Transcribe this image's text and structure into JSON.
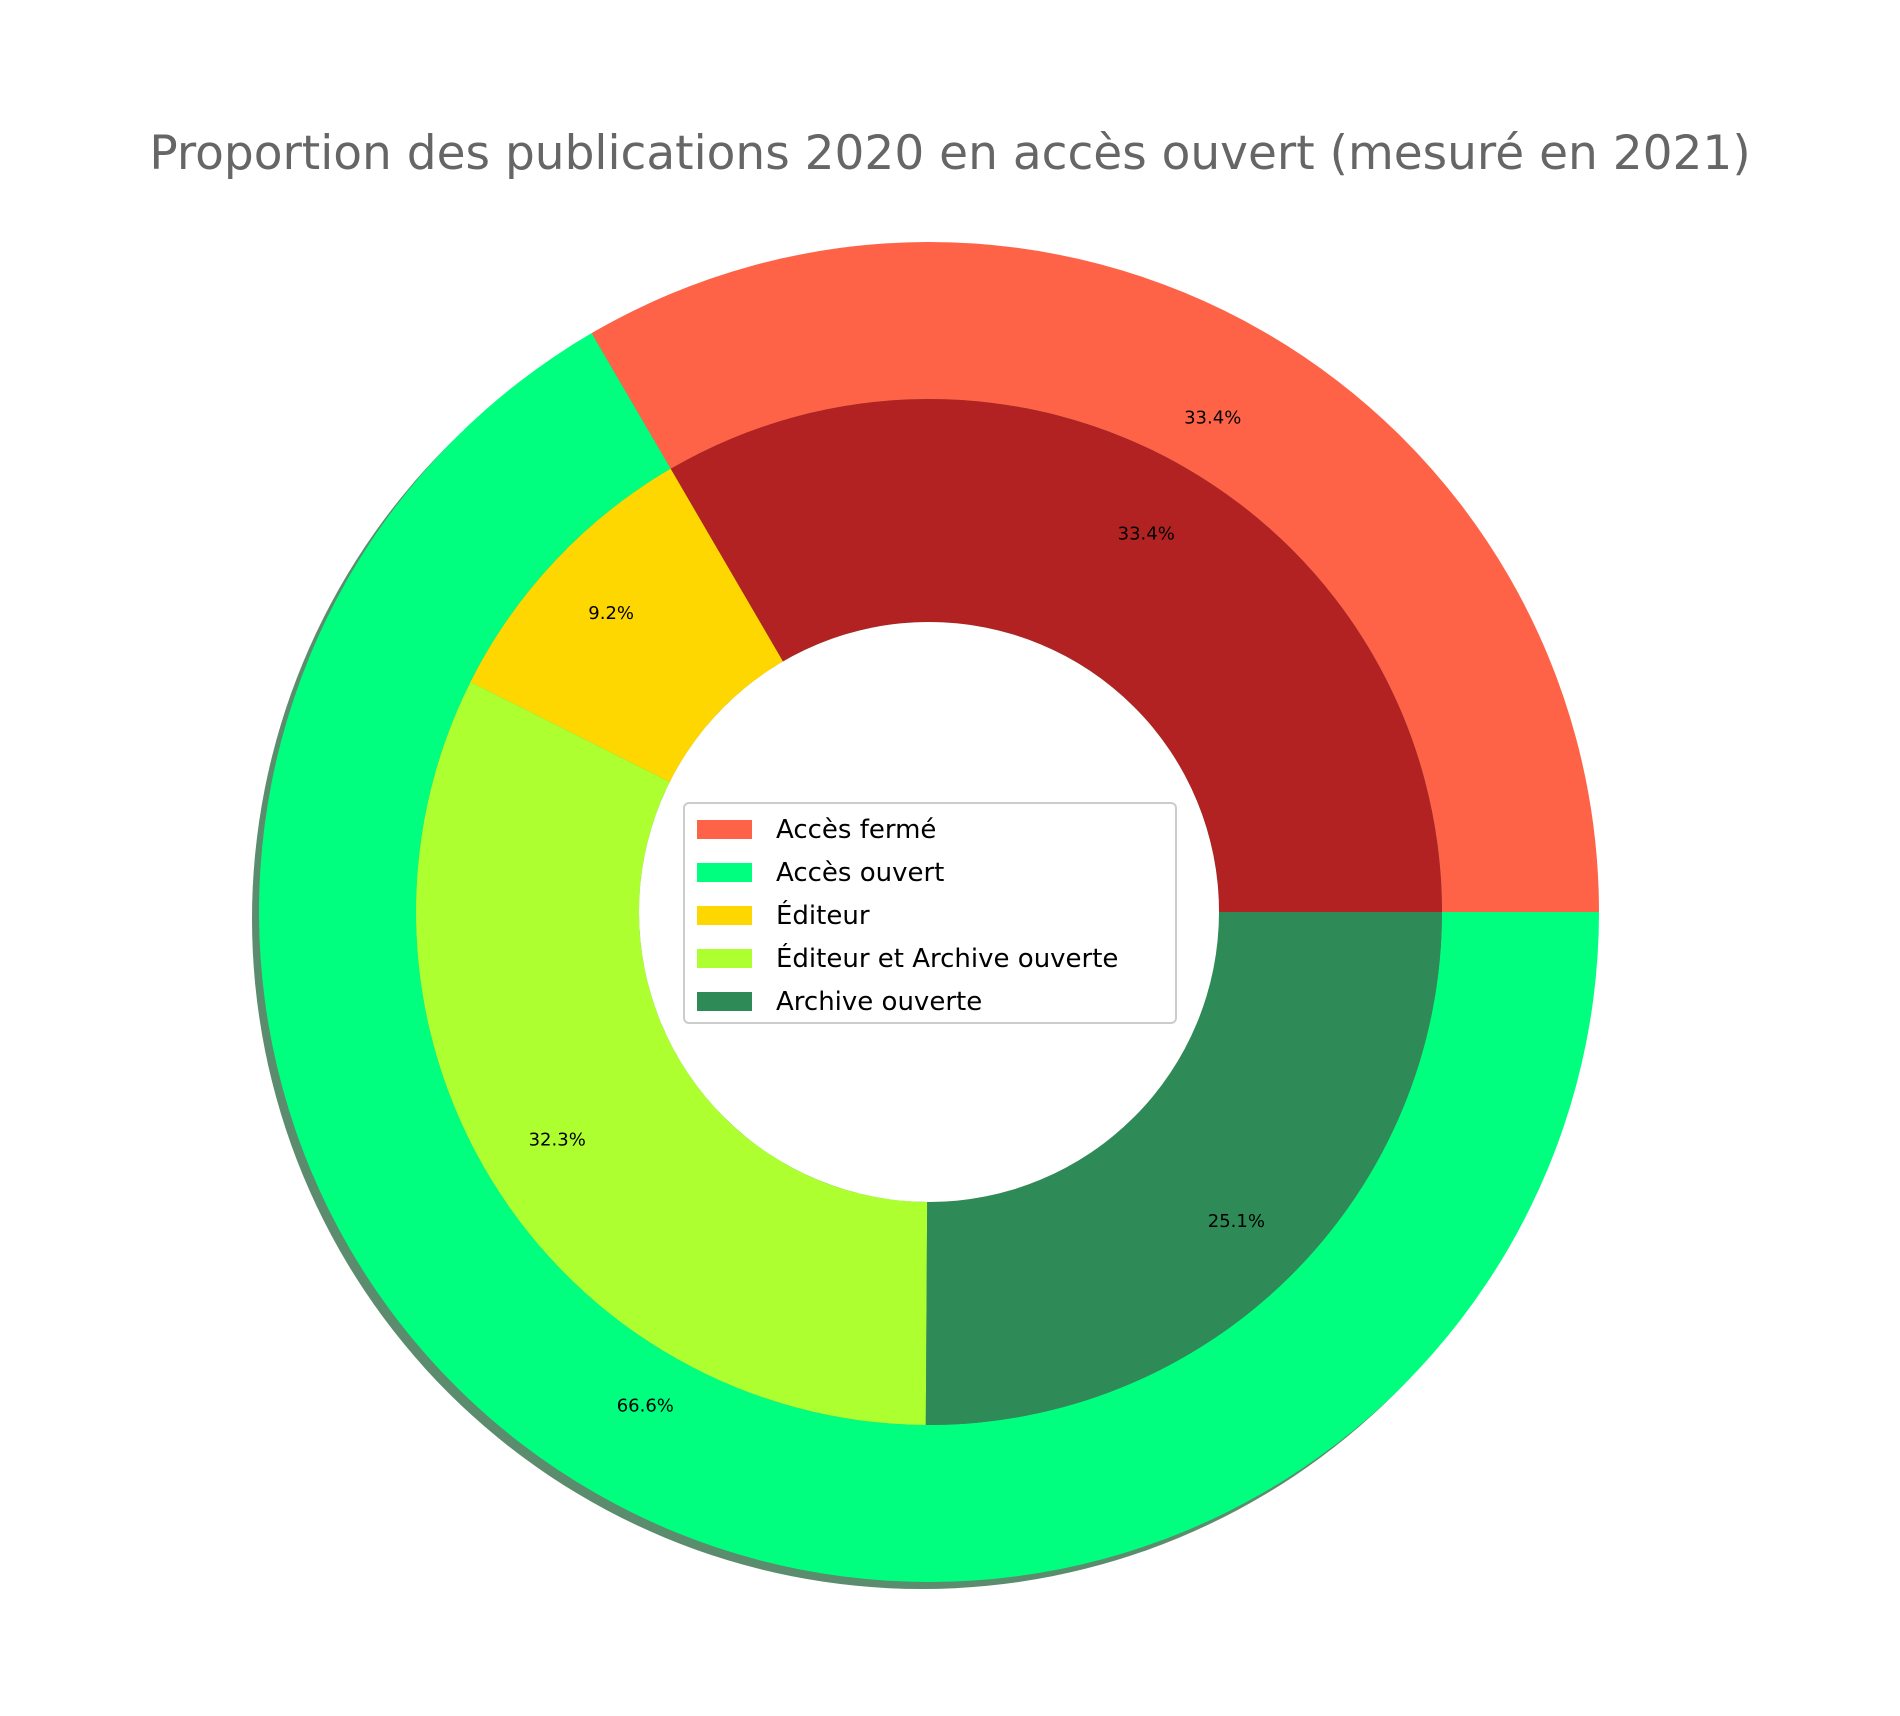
{
  "chart_data": {
    "type": "pie",
    "variant": "nested-donut",
    "title": "Proportion des publications 2020 en accès ouvert (mesuré en 2021)",
    "outer_ring": {
      "labels": [
        "Accès fermé",
        "Accès ouvert"
      ],
      "values": [
        33.4,
        66.6
      ],
      "value_labels": [
        "33.4%",
        "66.6%"
      ],
      "colors": [
        "#ff6347",
        "#00ff7f"
      ]
    },
    "inner_ring": {
      "labels": [
        "Accès fermé",
        "Éditeur",
        "Éditeur et Archive ouverte",
        "Archive ouverte"
      ],
      "values": [
        33.4,
        9.2,
        32.3,
        25.1
      ],
      "value_labels": [
        "33.4%",
        "9.2%",
        "32.3%",
        "25.1%"
      ],
      "colors": [
        "#b22222",
        "#ffd700",
        "#adff2f",
        "#2e8b57"
      ]
    },
    "legend": {
      "placement": "center",
      "entries": [
        {
          "label": "Accès fermé",
          "color": "#ff6347"
        },
        {
          "label": "Accès ouvert",
          "color": "#00ff7f"
        },
        {
          "label": "Éditeur",
          "color": "#ffd700"
        },
        {
          "label": "Éditeur et Archive ouverte",
          "color": "#adff2f"
        },
        {
          "label": "Archive ouverte",
          "color": "#2e8b57"
        }
      ]
    },
    "shadow": true,
    "shadow_color": "#5b8c6e"
  }
}
